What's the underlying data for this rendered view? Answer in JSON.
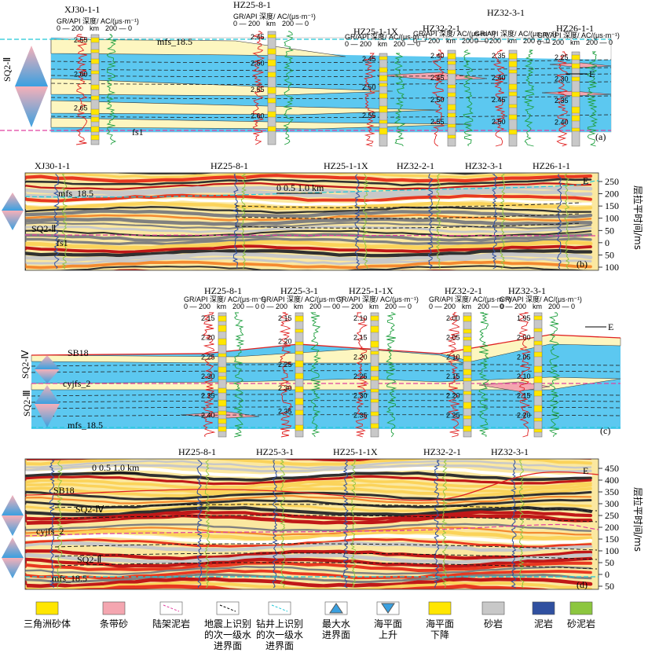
{
  "panel_a": {
    "wells": [
      "XJ30-1-1",
      "HZ25-8-1",
      "HZ25-1-1X",
      "HZ32-2-1",
      "HZ32-3-1",
      "HZ26-1-1"
    ],
    "curve_header": "GR/API  深度/ AC/(μs·m⁻¹)",
    "scale_left": "0 — 200",
    "scale_mid": "km",
    "scale_right": "200 — 0",
    "depths_xj": [
      "2.55",
      "2.60",
      "2.65"
    ],
    "depths_hz258": [
      "2.45",
      "2.50",
      "2.55",
      "2.60"
    ],
    "depths_hz2511": [
      "2.45",
      "2.50",
      "2.55"
    ],
    "depths_hz322": [
      "2.40",
      "2.45",
      "2.50",
      "2.55"
    ],
    "depths_hz323": [
      "2.35",
      "2.40",
      "2.45",
      "2.50"
    ],
    "depths_hz261": [
      "2.25",
      "2.30",
      "2.35",
      "2.40"
    ],
    "mfs": "mfs_18.5",
    "fs": "fs1",
    "sq": "SQ2-Ⅱ",
    "east": "E",
    "label": "(a)"
  },
  "panel_b": {
    "wells": [
      "XJ30-1-1",
      "HZ25-8-1",
      "HZ25-1-1X",
      "HZ32-2-1",
      "HZ32-3-1",
      "HZ26-1-1"
    ],
    "mfs": "mfs_18.5",
    "fs": "fs1",
    "sq": "SQ2-Ⅱ",
    "scale": "0  0.5 1.0 km",
    "axis_title": "层拉平时间/ms",
    "ticks": [
      "250",
      "200",
      "150",
      "100",
      "50",
      "0",
      "50",
      "100"
    ],
    "east": "E",
    "label": "(b)"
  },
  "panel_c": {
    "wells": [
      "HZ25-8-1",
      "HZ25-3-1",
      "HZ25-1-1X",
      "HZ32-2-1",
      "HZ32-3-1"
    ],
    "curve_header": "GR/API  深度/ AC/(μs·m⁻¹)",
    "scale_left": "0 — 200",
    "scale_mid": "km",
    "scale_right": "200 — 0",
    "depths_hz258": [
      "2.15",
      "2.20",
      "2.25",
      "2.30",
      "2.35",
      "2.40"
    ],
    "depths_hz253": [
      "2.15",
      "2.20",
      "2.25",
      "2.30",
      "2.35"
    ],
    "depths_hz2511": [
      "2.10",
      "2.15",
      "2.20",
      "2.25",
      "2.30",
      "2.35"
    ],
    "depths_hz322": [
      "2.00",
      "2.05",
      "2.10",
      "2.15",
      "2.20",
      "2.25"
    ],
    "depths_hz323": [
      "1.95",
      "2.00",
      "2.05",
      "2.10",
      "2.15",
      "2.20"
    ],
    "sb": "SB18",
    "cyjfs": "cyjfs_2",
    "mfs": "mfs_18.5",
    "sq4": "SQ2-Ⅳ",
    "sq3": "SQ2-Ⅲ",
    "east": "E",
    "label": "(c)"
  },
  "panel_d": {
    "wells": [
      "HZ25-8-1",
      "HZ25-3-1",
      "HZ25-1-1X",
      "HZ32-2-1",
      "HZ32-3-1"
    ],
    "sb": "SB18",
    "sq4": "SQ2-Ⅳ",
    "cyjfs": "cyjfs_2",
    "sq2": "SQ2-Ⅱ",
    "mfs": "mfs_18.5",
    "scale": "0  0.5 1.0 km",
    "axis_title": "层拉平时间/ms",
    "ticks": [
      "450",
      "400",
      "350",
      "300",
      "250",
      "200",
      "150",
      "100",
      "50",
      "0",
      "50"
    ],
    "east": "E",
    "label": "(d)"
  },
  "legend": {
    "items": [
      {
        "l1": "三角洲砂体",
        "l2": "",
        "l3": "",
        "kind": "delta"
      },
      {
        "l1": "条带砂",
        "l2": "",
        "l3": "",
        "kind": "strip"
      },
      {
        "l1": "陆架泥岩",
        "l2": "",
        "l3": "",
        "kind": "shelf"
      },
      {
        "l1": "地震上识别",
        "l2": "的次一级水",
        "l3": "进界面",
        "kind": "seis"
      },
      {
        "l1": "钻井上识别",
        "l2": "的次一级水",
        "l3": "进界面",
        "kind": "well"
      },
      {
        "l1": "最大水",
        "l2": "进界面",
        "l3": "",
        "kind": "mfs"
      },
      {
        "l1": "海平面",
        "l2": "上升",
        "l3": "",
        "kind": "rise"
      },
      {
        "l1": "海平面",
        "l2": "下降",
        "l3": "",
        "kind": "fall"
      },
      {
        "l1": "砂岩",
        "l2": "",
        "l3": "",
        "kind": "sand"
      },
      {
        "l1": "泥岩",
        "l2": "",
        "l3": "",
        "kind": "mud"
      },
      {
        "l1": "砂泥岩",
        "l2": "",
        "l3": "",
        "kind": "sandmud"
      }
    ]
  },
  "colors": {
    "sea": "#5cc8f0",
    "delta": "#fdf6c0",
    "strip": "#f4a6b0",
    "yellow": "#ffe600",
    "gr": "#e02020",
    "ac": "#20a040",
    "mfs": "#20c8d8",
    "fs": "#e040a0",
    "navy": "#3050a0",
    "olive": "#8cc63f"
  }
}
